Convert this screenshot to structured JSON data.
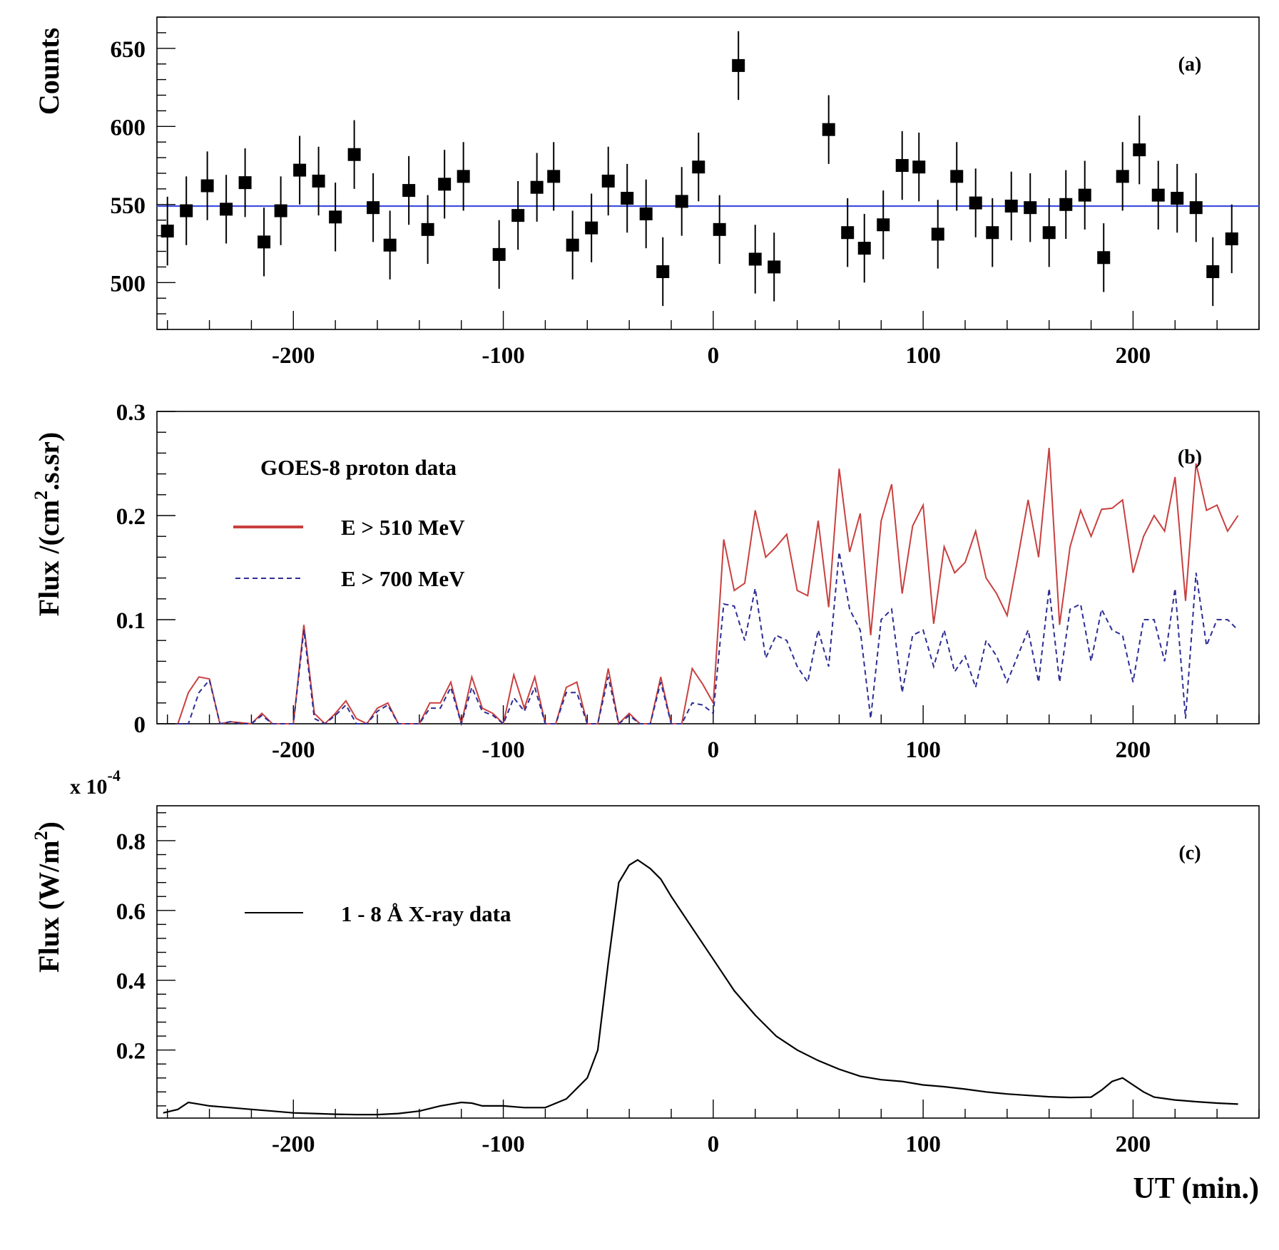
{
  "colors": {
    "axis": "#000000",
    "fit_line": "#3f4fe0",
    "flux_510": "#c8403f",
    "flux_700": "#2c2d94",
    "xray": "#000000"
  },
  "chart_data": [
    {
      "id": "a",
      "type": "scatter",
      "panel_label": "(a)",
      "ylabel": "Counts",
      "xlim": [
        -265,
        260
      ],
      "ylim": [
        470,
        670
      ],
      "xticks": [
        -200,
        -100,
        0,
        100,
        200
      ],
      "xticklabels": [
        "-200",
        "-100",
        "0",
        "100",
        "200"
      ],
      "yticks": [
        500,
        550,
        600,
        650
      ],
      "yticklabels": [
        "500",
        "550",
        "600",
        "650"
      ],
      "baseline": 549,
      "series": [
        {
          "name": "counts",
          "x": [
            -260,
            -251,
            -241,
            -232,
            -223,
            -214,
            -206,
            -197,
            -188,
            -180,
            -171,
            -162,
            -154,
            -145,
            -136,
            -128,
            -119,
            -102,
            -93,
            -84,
            -76,
            -67,
            -58,
            -50,
            -41,
            -32,
            -24,
            -15,
            -7,
            3,
            12,
            20,
            29,
            55,
            64,
            72,
            81,
            90,
            98,
            107,
            116,
            125,
            133,
            142,
            151,
            160,
            168,
            177,
            186,
            195,
            203,
            212,
            221,
            230,
            238,
            247
          ],
          "y": [
            533,
            546,
            562,
            547,
            564,
            526,
            546,
            572,
            565,
            542,
            582,
            548,
            524,
            559,
            534,
            563,
            568,
            518,
            543,
            561,
            568,
            524,
            535,
            565,
            554,
            544,
            507,
            552,
            574,
            534,
            639,
            515,
            510,
            598,
            532,
            522,
            537,
            575,
            574,
            531,
            568,
            551,
            532,
            549,
            548,
            532,
            550,
            556,
            516,
            568,
            585,
            556,
            554,
            548,
            507,
            528
          ],
          "yerr": 22
        }
      ]
    },
    {
      "id": "b",
      "type": "line",
      "panel_label": "(b)",
      "ylabel": "Flux /(cm².s.sr)",
      "ylabel_parts": {
        "pre": "Flux /(cm",
        "sup": "2",
        "post": ".s.sr)"
      },
      "xlim": [
        -265,
        260
      ],
      "ylim": [
        0,
        0.3
      ],
      "xticks": [
        -200,
        -100,
        0,
        100,
        200
      ],
      "xticklabels": [
        "-200",
        "-100",
        "0",
        "100",
        "200"
      ],
      "yticks": [
        0,
        0.1,
        0.2,
        0.3
      ],
      "yticklabels": [
        "0",
        "0.1",
        "0.2",
        "0.3"
      ],
      "legend_title": "GOES-8 proton data",
      "legend_position": "top-left",
      "series": [
        {
          "name": "E > 510 MeV",
          "style": "solid",
          "x": [
            -255,
            -250,
            -245,
            -240,
            -235,
            -230,
            -225,
            -220,
            -215,
            -210,
            -205,
            -200,
            -195,
            -190,
            -185,
            -180,
            -175,
            -170,
            -165,
            -160,
            -155,
            -150,
            -145,
            -140,
            -135,
            -130,
            -125,
            -120,
            -115,
            -110,
            -105,
            -100,
            -95,
            -90,
            -85,
            -80,
            -75,
            -70,
            -65,
            -60,
            -55,
            -50,
            -45,
            -40,
            -35,
            -30,
            -25,
            -20,
            -15,
            -10,
            -5,
            0,
            5,
            10,
            15,
            20,
            25,
            30,
            35,
            40,
            45,
            50,
            55,
            60,
            65,
            70,
            75,
            80,
            85,
            90,
            95,
            100,
            105,
            110,
            115,
            120,
            125,
            130,
            135,
            140,
            145,
            150,
            155,
            160,
            165,
            170,
            175,
            180,
            185,
            190,
            195,
            200,
            205,
            210,
            215,
            220,
            225,
            230,
            235,
            240,
            245,
            250
          ],
          "y": [
            0.0,
            0.03,
            0.045,
            0.043,
            0.0,
            0.002,
            0.001,
            0.0,
            0.01,
            0.0,
            0.0,
            0.0,
            0.095,
            0.01,
            0.0,
            0.01,
            0.022,
            0.005,
            0.0,
            0.015,
            0.02,
            0.0,
            0.0,
            0.0,
            0.02,
            0.02,
            0.04,
            0.0,
            0.045,
            0.015,
            0.01,
            0.0,
            0.047,
            0.015,
            0.045,
            0.0,
            0.0,
            0.035,
            0.04,
            0.0,
            0.0,
            0.053,
            0.0,
            0.01,
            0.0,
            0.0,
            0.045,
            0.0,
            0.0,
            0.053,
            0.038,
            0.02,
            0.177,
            0.128,
            0.135,
            0.205,
            0.16,
            0.17,
            0.182,
            0.128,
            0.123,
            0.195,
            0.112,
            0.245,
            0.165,
            0.202,
            0.085,
            0.195,
            0.23,
            0.125,
            0.19,
            0.21,
            0.096,
            0.17,
            0.145,
            0.155,
            0.185,
            0.14,
            0.125,
            0.104,
            0.158,
            0.215,
            0.16,
            0.265,
            0.095,
            0.17,
            0.205,
            0.18,
            0.206,
            0.207,
            0.215,
            0.145,
            0.18,
            0.2,
            0.185,
            0.237,
            0.118,
            0.25,
            0.205,
            0.21,
            0.185,
            0.2
          ]
        },
        {
          "name": "E > 700 MeV",
          "style": "dashed",
          "x": [
            -255,
            -250,
            -245,
            -240,
            -235,
            -230,
            -225,
            -220,
            -215,
            -210,
            -205,
            -200,
            -195,
            -190,
            -185,
            -180,
            -175,
            -170,
            -165,
            -160,
            -155,
            -150,
            -145,
            -140,
            -135,
            -130,
            -125,
            -120,
            -115,
            -110,
            -105,
            -100,
            -95,
            -90,
            -85,
            -80,
            -75,
            -70,
            -65,
            -60,
            -55,
            -50,
            -45,
            -40,
            -35,
            -30,
            -25,
            -20,
            -15,
            -10,
            -5,
            0,
            5,
            10,
            15,
            20,
            25,
            30,
            35,
            40,
            45,
            50,
            55,
            60,
            65,
            70,
            75,
            80,
            85,
            90,
            95,
            100,
            105,
            110,
            115,
            120,
            125,
            130,
            135,
            140,
            145,
            150,
            155,
            160,
            165,
            170,
            175,
            180,
            185,
            190,
            195,
            200,
            205,
            210,
            215,
            220,
            225,
            230,
            235,
            240,
            245,
            250
          ],
          "y": [
            0.0,
            0.0,
            0.03,
            0.042,
            0.0,
            0.002,
            0.0,
            0.0,
            0.008,
            0.0,
            0.0,
            0.0,
            0.09,
            0.005,
            0.0,
            0.008,
            0.018,
            0.0,
            0.0,
            0.012,
            0.018,
            0.0,
            0.0,
            0.0,
            0.015,
            0.015,
            0.035,
            0.0,
            0.035,
            0.012,
            0.008,
            0.0,
            0.025,
            0.012,
            0.035,
            0.0,
            0.0,
            0.03,
            0.03,
            0.0,
            0.0,
            0.045,
            0.0,
            0.008,
            0.0,
            0.0,
            0.04,
            0.0,
            0.0,
            0.02,
            0.018,
            0.01,
            0.115,
            0.113,
            0.08,
            0.13,
            0.063,
            0.085,
            0.08,
            0.055,
            0.04,
            0.09,
            0.055,
            0.165,
            0.11,
            0.09,
            0.005,
            0.1,
            0.11,
            0.03,
            0.085,
            0.09,
            0.055,
            0.09,
            0.05,
            0.065,
            0.035,
            0.08,
            0.065,
            0.04,
            0.065,
            0.09,
            0.04,
            0.13,
            0.04,
            0.11,
            0.115,
            0.06,
            0.11,
            0.09,
            0.085,
            0.04,
            0.1,
            0.1,
            0.06,
            0.13,
            0.005,
            0.145,
            0.075,
            0.1,
            0.1,
            0.09
          ]
        }
      ]
    },
    {
      "id": "c",
      "type": "line",
      "panel_label": "(c)",
      "ylabel": "Flux (W/m²)",
      "ylabel_parts": {
        "pre": "Flux (W/m",
        "sup": "2",
        "post": ")"
      },
      "exponent_label": {
        "pre": "x 10",
        "sup": "-4"
      },
      "xlim": [
        -265,
        260
      ],
      "ylim": [
        0.005,
        0.9
      ],
      "xticks": [
        -200,
        -100,
        0,
        100,
        200
      ],
      "xticklabels": [
        "-200",
        "-100",
        "0",
        "100",
        "200"
      ],
      "yticks": [
        0.2,
        0.4,
        0.6,
        0.8
      ],
      "yticklabels": [
        "0.2",
        "0.4",
        "0.6",
        "0.8"
      ],
      "xlabel": "UT (min.)",
      "legend_position": "top-left",
      "series": [
        {
          "name": "1 - 8 Å X-ray data",
          "style": "solid",
          "x": [
            -262,
            -255,
            -250,
            -245,
            -240,
            -230,
            -220,
            -210,
            -200,
            -190,
            -180,
            -170,
            -160,
            -150,
            -140,
            -130,
            -120,
            -115,
            -110,
            -100,
            -90,
            -80,
            -70,
            -60,
            -55,
            -50,
            -45,
            -40,
            -36,
            -30,
            -25,
            -20,
            -10,
            0,
            10,
            20,
            30,
            40,
            50,
            60,
            70,
            80,
            90,
            100,
            110,
            120,
            130,
            140,
            150,
            160,
            170,
            180,
            185,
            190,
            195,
            200,
            205,
            210,
            220,
            230,
            240,
            250
          ],
          "y": [
            0.02,
            0.03,
            0.05,
            0.045,
            0.04,
            0.035,
            0.03,
            0.025,
            0.02,
            0.018,
            0.016,
            0.015,
            0.015,
            0.018,
            0.025,
            0.04,
            0.05,
            0.048,
            0.04,
            0.04,
            0.035,
            0.035,
            0.06,
            0.12,
            0.2,
            0.45,
            0.68,
            0.73,
            0.745,
            0.72,
            0.69,
            0.64,
            0.55,
            0.46,
            0.37,
            0.3,
            0.24,
            0.2,
            0.17,
            0.145,
            0.125,
            0.115,
            0.11,
            0.1,
            0.095,
            0.088,
            0.08,
            0.074,
            0.07,
            0.066,
            0.064,
            0.065,
            0.085,
            0.11,
            0.12,
            0.1,
            0.08,
            0.065,
            0.057,
            0.052,
            0.048,
            0.045
          ]
        }
      ]
    }
  ]
}
